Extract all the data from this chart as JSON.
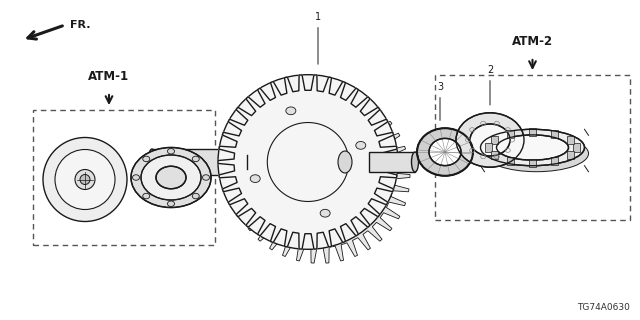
{
  "bg_color": "#ffffff",
  "line_color": "#1a1a1a",
  "part_number": "TG74A0630",
  "atm1_label": "ATM-1",
  "atm2_label": "ATM-2",
  "fr_label": "FR.",
  "figsize": [
    6.4,
    3.2
  ],
  "dpi": 100
}
